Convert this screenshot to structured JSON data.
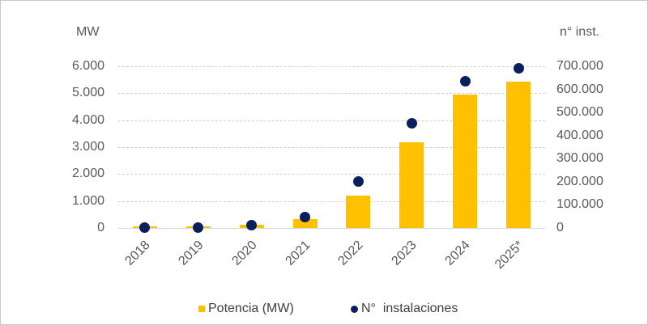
{
  "chart_data": {
    "type": "bar",
    "title": "",
    "xlabel": "",
    "ylabel": "MW",
    "y2label": "n° inst.",
    "categories": [
      "2018",
      "2019",
      "2020",
      "2021",
      "2022",
      "2023",
      "2024",
      "2025*"
    ],
    "series": [
      {
        "name": "Potencia (MW)",
        "type": "bar",
        "axis": "left",
        "color": "#FFC000",
        "values": [
          60,
          50,
          110,
          330,
          1200,
          3180,
          4950,
          5430
        ]
      },
      {
        "name": "N°  instalaciones",
        "type": "scatter",
        "axis": "right",
        "color": "#0B1F5C",
        "values": [
          1000,
          2000,
          14000,
          49000,
          200000,
          452000,
          634000,
          693000
        ]
      }
    ],
    "ylim": [
      0,
      6000
    ],
    "y2lim": [
      0,
      700000
    ],
    "yticks": [
      "0",
      "1.000",
      "2.000",
      "3.000",
      "4.000",
      "5.000",
      "6.000"
    ],
    "y2ticks": [
      "0",
      "100.000",
      "200.000",
      "300.000",
      "400.000",
      "500.000",
      "600.000",
      "700.000"
    ],
    "grid": true,
    "legend_position": "bottom"
  },
  "axes": {
    "left_title": "MW",
    "right_title": "n° inst."
  },
  "legend": {
    "bar_label": "Potencia (MW)",
    "dot_label": "N°  instalaciones"
  },
  "colors": {
    "bar": "#FFC000",
    "dot": "#0B1F5C",
    "text": "#595959",
    "grid": "#D0D0D0"
  }
}
